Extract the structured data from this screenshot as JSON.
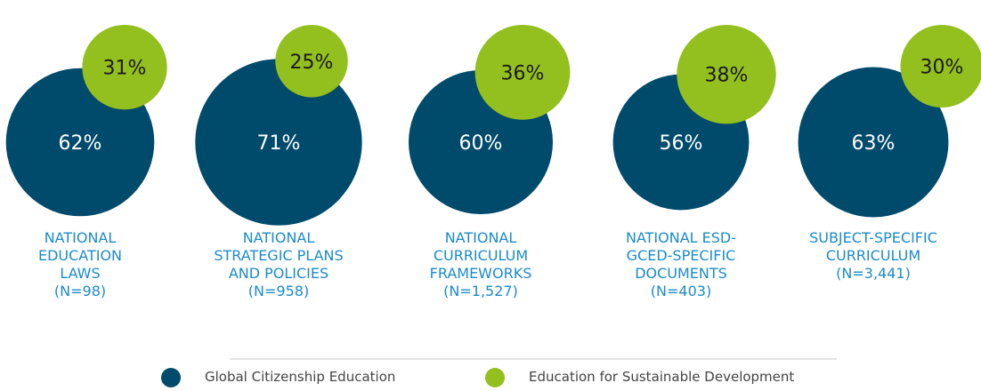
{
  "chart_data": {
    "type": "bubble",
    "categories": [
      "NATIONAL EDUCATION LAWS",
      "NATIONAL STRATEGIC PLANS AND POLICIES",
      "NATIONAL CURRICULUM FRAMEWORKS",
      "NATIONAL ESD-GCED-SPECIFIC DOCUMENTS",
      "SUBJECT-SPECIFIC CURRICULUM"
    ],
    "sample_sizes": [
      "(N=98)",
      "(N=958)",
      "(N=1,527)",
      "(N=403)",
      "(N=3,441)"
    ],
    "series": [
      {
        "name": "Global Citizenship Education",
        "color": "#004a6b",
        "values": [
          62,
          71,
          60,
          56,
          63
        ],
        "value_labels": [
          "62%",
          "71%",
          "60%",
          "56%",
          "63%"
        ]
      },
      {
        "name": "Education for Sustainable Development",
        "color": "#93c01f",
        "values": [
          31,
          25,
          36,
          38,
          30
        ],
        "value_labels": [
          "31%",
          "25%",
          "36%",
          "38%",
          "30%"
        ]
      }
    ]
  }
}
